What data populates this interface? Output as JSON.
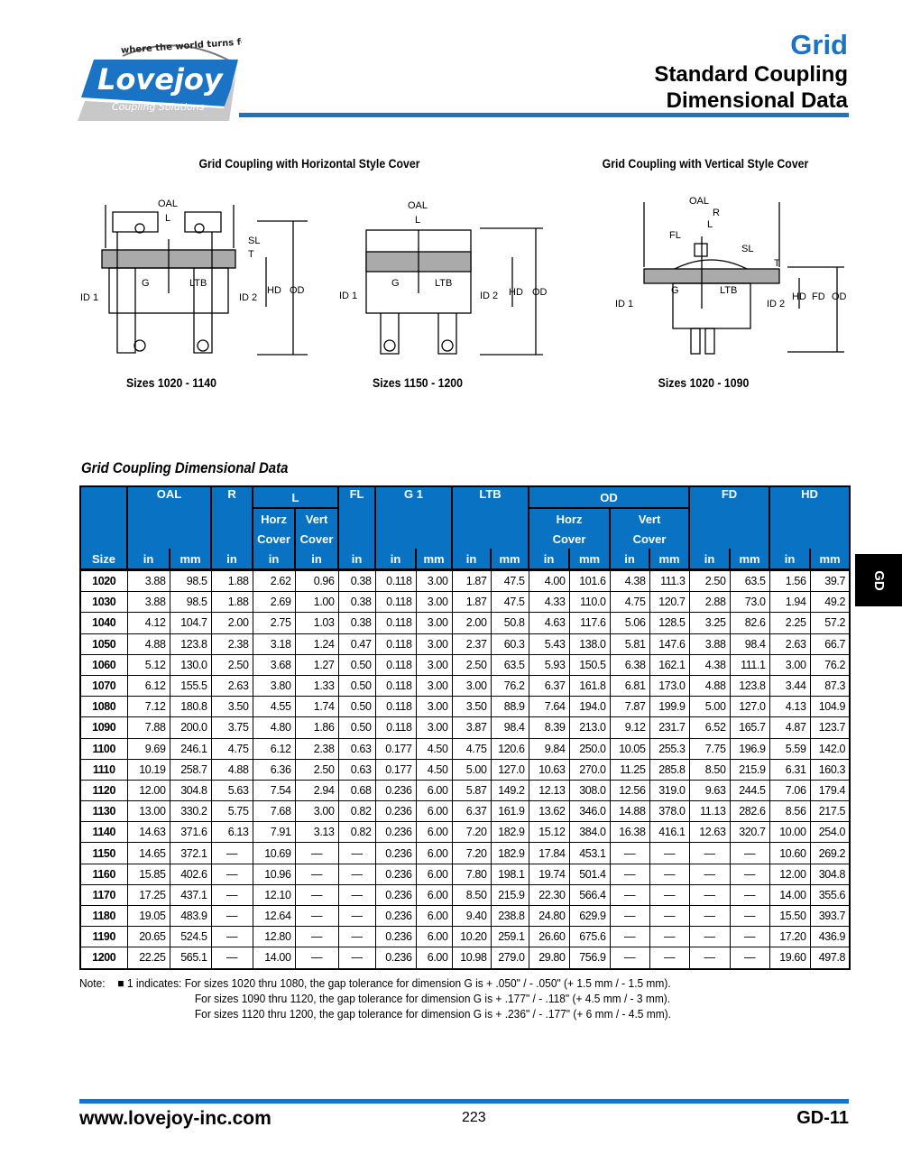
{
  "logo": {
    "tagline": "where the world turns for",
    "brand": "Lovejoy",
    "sub": "Coupling Solutions"
  },
  "header": {
    "category": "Grid",
    "title_line1": "Standard Coupling",
    "title_line2": "Dimensional Data"
  },
  "colors": {
    "accent": "#1a73c4",
    "table_header": "#0a72c2"
  },
  "diagrams": [
    {
      "caption": "Grid Coupling with Horizontal Style Cover",
      "sizes": "Sizes 1020 - 1140",
      "labels": [
        "OAL",
        "L",
        "SL",
        "T",
        "G",
        "LTB",
        "ID 1",
        "ID 2",
        "HD",
        "OD"
      ]
    },
    {
      "sizes": "Sizes 1150 - 1200",
      "labels": [
        "OAL",
        "L",
        "G",
        "LTB",
        "ID 1",
        "ID 2",
        "HD",
        "OD"
      ]
    },
    {
      "caption": "Grid Coupling with Vertical Style Cover",
      "sizes": "Sizes 1020 - 1090",
      "labels": [
        "OAL",
        "R",
        "L",
        "FL",
        "SL",
        "T",
        "G",
        "LTB",
        "ID 1",
        "ID 2",
        "HD",
        "FD",
        "OD"
      ]
    }
  ],
  "table": {
    "title": "Grid Coupling Dimensional Data",
    "groups": [
      "OAL",
      "R",
      "L",
      "FL",
      "G 1",
      "LTB",
      "OD",
      "FD",
      "HD"
    ],
    "sub_groups": {
      "L_horz": [
        "Horz",
        "Cover"
      ],
      "L_vert": [
        "Vert",
        "Cover"
      ],
      "OD_horz": [
        "Horz",
        "Cover"
      ],
      "OD_vert": [
        "Vert",
        "Cover"
      ]
    },
    "units": [
      "Size",
      "in",
      "mm",
      "in",
      "in",
      "in",
      "in",
      "in",
      "mm",
      "in",
      "mm",
      "in",
      "mm",
      "in",
      "mm",
      "in",
      "mm",
      "in",
      "mm"
    ],
    "rows": [
      [
        "1020",
        "3.88",
        "98.5",
        "1.88",
        "2.62",
        "0.96",
        "0.38",
        "0.118",
        "3.00",
        "1.87",
        "47.5",
        "4.00",
        "101.6",
        "4.38",
        "111.3",
        "2.50",
        "63.5",
        "1.56",
        "39.7"
      ],
      [
        "1030",
        "3.88",
        "98.5",
        "1.88",
        "2.69",
        "1.00",
        "0.38",
        "0.118",
        "3.00",
        "1.87",
        "47.5",
        "4.33",
        "110.0",
        "4.75",
        "120.7",
        "2.88",
        "73.0",
        "1.94",
        "49.2"
      ],
      [
        "1040",
        "4.12",
        "104.7",
        "2.00",
        "2.75",
        "1.03",
        "0.38",
        "0.118",
        "3.00",
        "2.00",
        "50.8",
        "4.63",
        "117.6",
        "5.06",
        "128.5",
        "3.25",
        "82.6",
        "2.25",
        "57.2"
      ],
      [
        "1050",
        "4.88",
        "123.8",
        "2.38",
        "3.18",
        "1.24",
        "0.47",
        "0.118",
        "3.00",
        "2.37",
        "60.3",
        "5.43",
        "138.0",
        "5.81",
        "147.6",
        "3.88",
        "98.4",
        "2.63",
        "66.7"
      ],
      [
        "1060",
        "5.12",
        "130.0",
        "2.50",
        "3.68",
        "1.27",
        "0.50",
        "0.118",
        "3.00",
        "2.50",
        "63.5",
        "5.93",
        "150.5",
        "6.38",
        "162.1",
        "4.38",
        "111.1",
        "3.00",
        "76.2"
      ],
      [
        "1070",
        "6.12",
        "155.5",
        "2.63",
        "3.80",
        "1.33",
        "0.50",
        "0.118",
        "3.00",
        "3.00",
        "76.2",
        "6.37",
        "161.8",
        "6.81",
        "173.0",
        "4.88",
        "123.8",
        "3.44",
        "87.3"
      ],
      [
        "1080",
        "7.12",
        "180.8",
        "3.50",
        "4.55",
        "1.74",
        "0.50",
        "0.118",
        "3.00",
        "3.50",
        "88.9",
        "7.64",
        "194.0",
        "7.87",
        "199.9",
        "5.00",
        "127.0",
        "4.13",
        "104.9"
      ],
      [
        "1090",
        "7.88",
        "200.0",
        "3.75",
        "4.80",
        "1.86",
        "0.50",
        "0.118",
        "3.00",
        "3.87",
        "98.4",
        "8.39",
        "213.0",
        "9.12",
        "231.7",
        "6.52",
        "165.7",
        "4.87",
        "123.7"
      ],
      [
        "1100",
        "9.69",
        "246.1",
        "4.75",
        "6.12",
        "2.38",
        "0.63",
        "0.177",
        "4.50",
        "4.75",
        "120.6",
        "9.84",
        "250.0",
        "10.05",
        "255.3",
        "7.75",
        "196.9",
        "5.59",
        "142.0"
      ],
      [
        "1110",
        "10.19",
        "258.7",
        "4.88",
        "6.36",
        "2.50",
        "0.63",
        "0.177",
        "4.50",
        "5.00",
        "127.0",
        "10.63",
        "270.0",
        "11.25",
        "285.8",
        "8.50",
        "215.9",
        "6.31",
        "160.3"
      ],
      [
        "1120",
        "12.00",
        "304.8",
        "5.63",
        "7.54",
        "2.94",
        "0.68",
        "0.236",
        "6.00",
        "5.87",
        "149.2",
        "12.13",
        "308.0",
        "12.56",
        "319.0",
        "9.63",
        "244.5",
        "7.06",
        "179.4"
      ],
      [
        "1130",
        "13.00",
        "330.2",
        "5.75",
        "7.68",
        "3.00",
        "0.82",
        "0.236",
        "6.00",
        "6.37",
        "161.9",
        "13.62",
        "346.0",
        "14.88",
        "378.0",
        "11.13",
        "282.6",
        "8.56",
        "217.5"
      ],
      [
        "1140",
        "14.63",
        "371.6",
        "6.13",
        "7.91",
        "3.13",
        "0.82",
        "0.236",
        "6.00",
        "7.20",
        "182.9",
        "15.12",
        "384.0",
        "16.38",
        "416.1",
        "12.63",
        "320.7",
        "10.00",
        "254.0"
      ],
      [
        "1150",
        "14.65",
        "372.1",
        "—",
        "10.69",
        "—",
        "—",
        "0.236",
        "6.00",
        "7.20",
        "182.9",
        "17.84",
        "453.1",
        "—",
        "—",
        "—",
        "—",
        "10.60",
        "269.2"
      ],
      [
        "1160",
        "15.85",
        "402.6",
        "—",
        "10.96",
        "—",
        "—",
        "0.236",
        "6.00",
        "7.80",
        "198.1",
        "19.74",
        "501.4",
        "—",
        "—",
        "—",
        "—",
        "12.00",
        "304.8"
      ],
      [
        "1170",
        "17.25",
        "437.1",
        "—",
        "12.10",
        "—",
        "—",
        "0.236",
        "6.00",
        "8.50",
        "215.9",
        "22.30",
        "566.4",
        "—",
        "—",
        "—",
        "—",
        "14.00",
        "355.6"
      ],
      [
        "1180",
        "19.05",
        "483.9",
        "—",
        "12.64",
        "—",
        "—",
        "0.236",
        "6.00",
        "9.40",
        "238.8",
        "24.80",
        "629.9",
        "—",
        "—",
        "—",
        "—",
        "15.50",
        "393.7"
      ],
      [
        "1190",
        "20.65",
        "524.5",
        "—",
        "12.80",
        "—",
        "—",
        "0.236",
        "6.00",
        "10.20",
        "259.1",
        "26.60",
        "675.6",
        "—",
        "—",
        "—",
        "—",
        "17.20",
        "436.9"
      ],
      [
        "1200",
        "22.25",
        "565.1",
        "—",
        "14.00",
        "—",
        "—",
        "0.236",
        "6.00",
        "10.98",
        "279.0",
        "29.80",
        "756.9",
        "—",
        "—",
        "—",
        "—",
        "19.60",
        "497.8"
      ]
    ]
  },
  "note": {
    "label": "Note:",
    "lines": [
      "1 indicates: For sizes 1020 thru 1080, the gap tolerance for dimension G is + .050\" / - .050\" (+ 1.5 mm / - 1.5 mm).",
      "For sizes 1090 thru 1120, the gap tolerance for dimension G is + .177\" / - .118\" (+ 4.5 mm / - 3 mm).",
      "For sizes 1120 thru 1200, the gap tolerance for dimension G is + .236\" / - .177\" (+ 6 mm / - 4.5 mm)."
    ]
  },
  "side_tab": "GD",
  "footer": {
    "url": "www.lovejoy-inc.com",
    "page_number": "223",
    "page_code": "GD-11"
  }
}
